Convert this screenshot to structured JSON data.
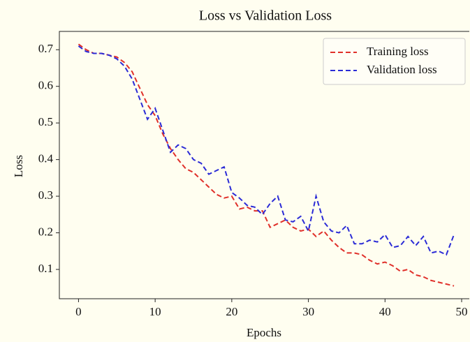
{
  "chart_data": {
    "type": "line",
    "title": "Loss vs Validation Loss",
    "xlabel": "Epochs",
    "ylabel": "Loss",
    "x": [
      0,
      1,
      2,
      3,
      4,
      5,
      6,
      7,
      8,
      9,
      10,
      11,
      12,
      13,
      14,
      15,
      16,
      17,
      18,
      19,
      20,
      21,
      22,
      23,
      24,
      25,
      26,
      27,
      28,
      29,
      30,
      31,
      32,
      33,
      34,
      35,
      36,
      37,
      38,
      39,
      40,
      41,
      42,
      43,
      44,
      45,
      46,
      47,
      48,
      49
    ],
    "series": [
      {
        "name": "Training loss",
        "color": "#e0302a",
        "values": [
          0.715,
          0.7,
          0.69,
          0.69,
          0.685,
          0.68,
          0.665,
          0.64,
          0.595,
          0.55,
          0.52,
          0.47,
          0.43,
          0.4,
          0.375,
          0.365,
          0.345,
          0.325,
          0.305,
          0.295,
          0.3,
          0.265,
          0.27,
          0.26,
          0.26,
          0.215,
          0.225,
          0.235,
          0.215,
          0.205,
          0.21,
          0.19,
          0.205,
          0.18,
          0.16,
          0.145,
          0.145,
          0.14,
          0.125,
          0.115,
          0.12,
          0.11,
          0.095,
          0.1,
          0.085,
          0.08,
          0.07,
          0.065,
          0.06,
          0.055
        ]
      },
      {
        "name": "Validation loss",
        "color": "#2b2bd6",
        "values": [
          0.71,
          0.695,
          0.69,
          0.69,
          0.685,
          0.675,
          0.655,
          0.62,
          0.565,
          0.51,
          0.54,
          0.48,
          0.42,
          0.44,
          0.43,
          0.4,
          0.39,
          0.36,
          0.37,
          0.38,
          0.31,
          0.295,
          0.275,
          0.27,
          0.25,
          0.28,
          0.3,
          0.235,
          0.23,
          0.245,
          0.205,
          0.3,
          0.23,
          0.205,
          0.2,
          0.22,
          0.17,
          0.17,
          0.18,
          0.175,
          0.195,
          0.16,
          0.165,
          0.19,
          0.165,
          0.19,
          0.145,
          0.15,
          0.14,
          0.195
        ]
      }
    ],
    "xlim": [
      -2.5,
      51
    ],
    "xticks": [
      0,
      10,
      20,
      30,
      40,
      50
    ],
    "ylim": [
      0.02,
      0.75
    ],
    "yticks": [
      0.1,
      0.2,
      0.3,
      0.4,
      0.5,
      0.6,
      0.7
    ],
    "legend": "upper right",
    "grid": false
  }
}
